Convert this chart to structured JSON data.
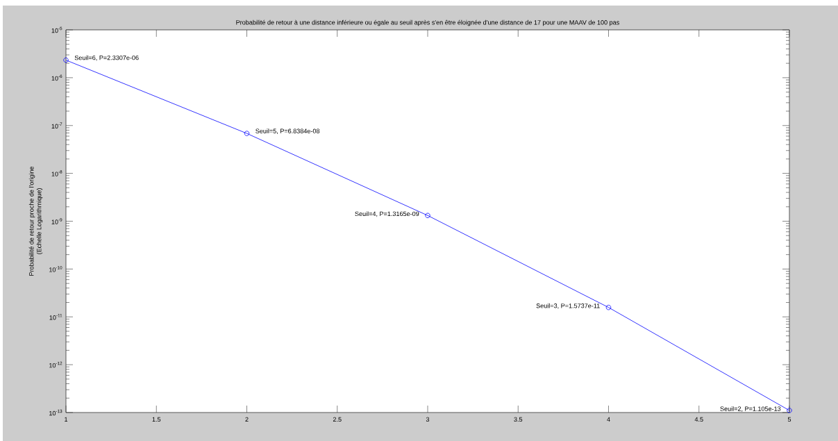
{
  "chart_data": {
    "type": "line",
    "title": "Probabilité de retour à une distance inférieure ou égale au seuil après s'en être éloignée d'une distance de 17 pour une MAAV de 100 pas",
    "ylabel": "Probabilité de retour proche de l'origine (Echelle Logarithmique)",
    "x": [
      1,
      2,
      3,
      4,
      5
    ],
    "values": [
      2.3307e-06,
      6.8384e-08,
      1.3165e-09,
      1.5737e-11,
      1.105e-13
    ],
    "value_labels": [
      "Seuil=6, P=2.3307e-06",
      "Seuil=5, P=6.8384e-08",
      "Seuil=4, P=1.3165e-09",
      "Seuil=3, P=1.5737e-11",
      "Seuil=2, P=1.105e-13"
    ],
    "color": "#0000ff",
    "marker": "circle",
    "line_style": "solid",
    "log": "y",
    "xlim": [
      1,
      5
    ],
    "ylim": [
      1e-13,
      1e-05
    ],
    "xticks": [
      1,
      1.5,
      2,
      2.5,
      3,
      3.5,
      4,
      4.5,
      5
    ],
    "yticks": [
      {
        "value": 1e-13,
        "label": "10$^{-13}$"
      },
      {
        "value": 1e-12,
        "label": "10$^{-12}$"
      },
      {
        "value": 1e-11,
        "label": "10$^{-11}$"
      },
      {
        "value": 1e-10,
        "label": "10$^{-10}$"
      },
      {
        "value": 1e-09,
        "label": "10$^{-9}$"
      },
      {
        "value": 1e-08,
        "label": "10$^{-8}$"
      },
      {
        "value": 1e-07,
        "label": "10$^{-7}$"
      },
      {
        "value": 1e-06,
        "label": "10$^{-6}$"
      },
      {
        "value": 1e-05,
        "label": "10$^{-5}$"
      }
    ]
  }
}
